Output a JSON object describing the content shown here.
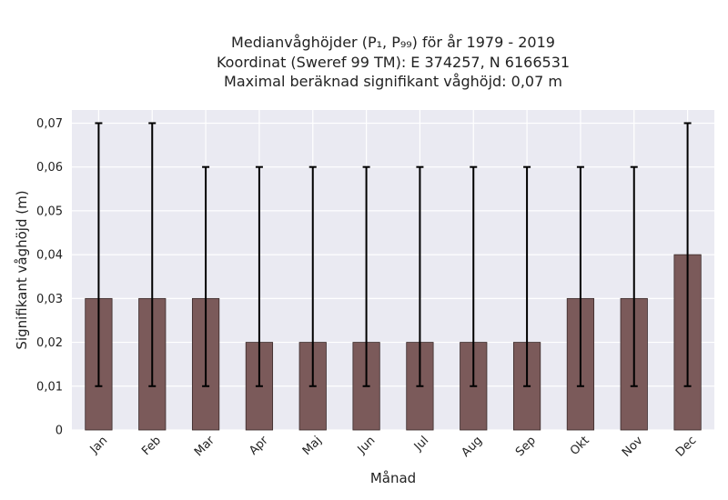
{
  "chart_data": {
    "type": "bar",
    "title_lines": [
      "Medianvåghöjder (P₁, P₉₉) för år 1979 - 2019",
      "Koordinat (Sweref 99 TM): E 374257, N 6166531",
      "Maximal beräknad signifikant våghöjd: 0,07 m"
    ],
    "xlabel": "Månad",
    "ylabel": "Signifikant våghöjd (m)",
    "categories": [
      "Jan",
      "Feb",
      "Mar",
      "Apr",
      "Maj",
      "Jun",
      "Jul",
      "Aug",
      "Sep",
      "Okt",
      "Nov",
      "Dec"
    ],
    "values": [
      0.03,
      0.03,
      0.03,
      0.02,
      0.02,
      0.02,
      0.02,
      0.02,
      0.02,
      0.03,
      0.03,
      0.04
    ],
    "p1": [
      0.01,
      0.01,
      0.01,
      0.01,
      0.01,
      0.01,
      0.01,
      0.01,
      0.01,
      0.01,
      0.01,
      0.01
    ],
    "p99": [
      0.07,
      0.07,
      0.06,
      0.06,
      0.06,
      0.06,
      0.06,
      0.06,
      0.06,
      0.06,
      0.06,
      0.07
    ],
    "ylim": [
      0,
      0.073
    ],
    "yticks": [
      0,
      0.01,
      0.02,
      0.03,
      0.04,
      0.05,
      0.06,
      0.07
    ],
    "ytick_labels": [
      "0",
      "0,01",
      "0,02",
      "0,03",
      "0,04",
      "0,05",
      "0,06",
      "0,07"
    ],
    "grid": true,
    "colors": {
      "bar": "#7b5a5a",
      "bar_edge": "#3a2a2a",
      "errorbar": "#000000",
      "plot_background": "#eaeaf2",
      "grid": "#ffffff"
    }
  }
}
